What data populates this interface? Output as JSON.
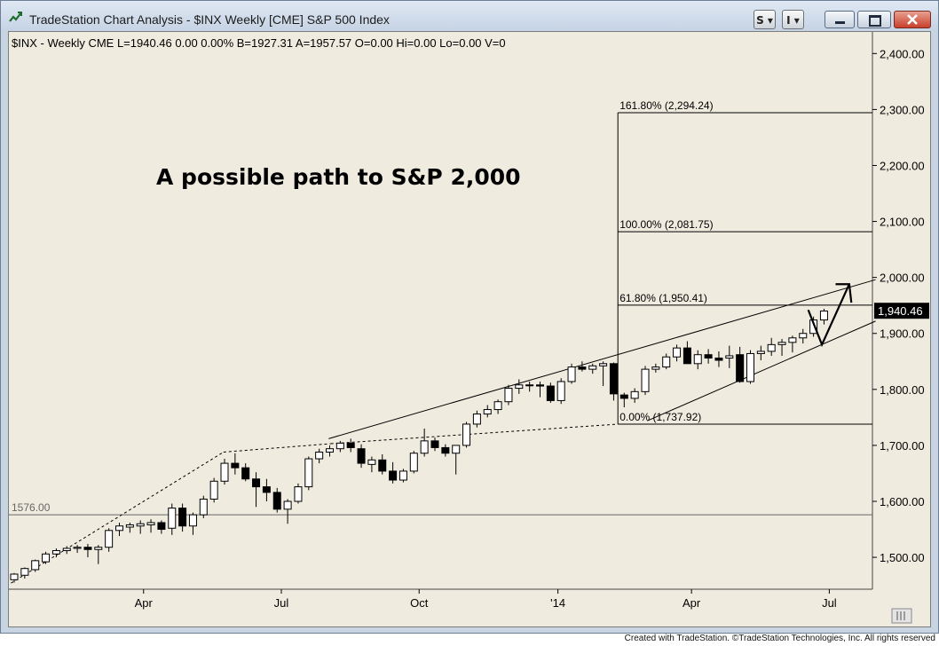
{
  "window": {
    "title": "TradeStation Chart Analysis - $INX Weekly [CME] S&P 500 Index",
    "buttons": {
      "symbol_menu": "S",
      "indicator_menu": "I"
    }
  },
  "status_bar": {
    "text": "$INX - Weekly  CME  L=1940.46  0.00  0.00%  B=1927.31  A=1957.57     O=0.00  Hi=0.00  Lo=0.00  V=0"
  },
  "annotation": {
    "headline": "A possible path to S&P 2,000"
  },
  "reference_line": {
    "value": 1576,
    "label": "1576.00"
  },
  "last_price": {
    "value": 1940.46,
    "label": "1,940.46",
    "bg_color": "#000000",
    "text_color": "#ffffff"
  },
  "footer": {
    "credit": "Created with TradeStation. ©TradeStation Technologies, Inc. All rights reserved"
  },
  "chart_data": {
    "type": "candlestick",
    "title": "",
    "ylim": [
      1450,
      2450
    ],
    "y_ticks": [
      {
        "value": 1500,
        "label": "1,500.00"
      },
      {
        "value": 1600,
        "label": "1,600.00"
      },
      {
        "value": 1700,
        "label": "1,700.00"
      },
      {
        "value": 1800,
        "label": "1,800.00"
      },
      {
        "value": 1900,
        "label": "1,900.00"
      },
      {
        "value": 2000,
        "label": "2,000.00"
      },
      {
        "value": 2100,
        "label": "2,100.00"
      },
      {
        "value": 2200,
        "label": "2,200.00"
      },
      {
        "value": 2300,
        "label": "2,300.00"
      },
      {
        "value": 2400,
        "label": "2,400.00"
      }
    ],
    "x_ticks": [
      {
        "bar": 12.3,
        "label": "Apr"
      },
      {
        "bar": 25.4,
        "label": "Jul"
      },
      {
        "bar": 38.5,
        "label": "Oct"
      },
      {
        "bar": 51.7,
        "label": "'14"
      },
      {
        "bar": 64.4,
        "label": "Apr"
      },
      {
        "bar": 77.5,
        "label": "Jul"
      }
    ],
    "candles": [
      [
        1460,
        1472,
        1455,
        1470
      ],
      [
        1468,
        1482,
        1462,
        1480
      ],
      [
        1478,
        1496,
        1474,
        1494
      ],
      [
        1492,
        1510,
        1488,
        1506
      ],
      [
        1506,
        1516,
        1500,
        1512
      ],
      [
        1512,
        1520,
        1506,
        1516
      ],
      [
        1516,
        1522,
        1508,
        1518
      ],
      [
        1518,
        1524,
        1500,
        1514
      ],
      [
        1514,
        1522,
        1488,
        1518
      ],
      [
        1518,
        1552,
        1510,
        1548
      ],
      [
        1548,
        1562,
        1538,
        1556
      ],
      [
        1554,
        1562,
        1544,
        1558
      ],
      [
        1556,
        1566,
        1542,
        1560
      ],
      [
        1558,
        1568,
        1544,
        1562
      ],
      [
        1562,
        1566,
        1542,
        1550
      ],
      [
        1552,
        1596,
        1540,
        1588
      ],
      [
        1588,
        1596,
        1546,
        1556
      ],
      [
        1556,
        1580,
        1540,
        1576
      ],
      [
        1576,
        1610,
        1570,
        1604
      ],
      [
        1604,
        1642,
        1598,
        1636
      ],
      [
        1636,
        1676,
        1630,
        1668
      ],
      [
        1668,
        1686,
        1648,
        1660
      ],
      [
        1660,
        1668,
        1636,
        1640
      ],
      [
        1640,
        1652,
        1590,
        1626
      ],
      [
        1626,
        1640,
        1600,
        1616
      ],
      [
        1616,
        1624,
        1580,
        1586
      ],
      [
        1586,
        1604,
        1560,
        1600
      ],
      [
        1600,
        1632,
        1596,
        1626
      ],
      [
        1626,
        1680,
        1620,
        1676
      ],
      [
        1676,
        1694,
        1668,
        1688
      ],
      [
        1688,
        1700,
        1680,
        1694
      ],
      [
        1694,
        1708,
        1688,
        1704
      ],
      [
        1704,
        1712,
        1688,
        1696
      ],
      [
        1694,
        1702,
        1660,
        1668
      ],
      [
        1666,
        1680,
        1652,
        1674
      ],
      [
        1674,
        1684,
        1648,
        1654
      ],
      [
        1654,
        1670,
        1632,
        1638
      ],
      [
        1638,
        1658,
        1634,
        1654
      ],
      [
        1654,
        1690,
        1650,
        1686
      ],
      [
        1686,
        1730,
        1680,
        1708
      ],
      [
        1708,
        1714,
        1690,
        1696
      ],
      [
        1696,
        1702,
        1680,
        1686
      ],
      [
        1686,
        1700,
        1648,
        1700
      ],
      [
        1700,
        1742,
        1696,
        1738
      ],
      [
        1738,
        1762,
        1732,
        1756
      ],
      [
        1756,
        1772,
        1750,
        1764
      ],
      [
        1764,
        1782,
        1756,
        1778
      ],
      [
        1778,
        1808,
        1772,
        1802
      ],
      [
        1802,
        1818,
        1792,
        1808
      ],
      [
        1808,
        1814,
        1796,
        1808
      ],
      [
        1808,
        1814,
        1786,
        1806
      ],
      [
        1806,
        1812,
        1776,
        1780
      ],
      [
        1780,
        1820,
        1774,
        1814
      ],
      [
        1814,
        1846,
        1810,
        1840
      ],
      [
        1840,
        1850,
        1832,
        1836
      ],
      [
        1836,
        1846,
        1828,
        1842
      ],
      [
        1842,
        1850,
        1806,
        1846
      ],
      [
        1846,
        1848,
        1780,
        1792
      ],
      [
        1790,
        1794,
        1768,
        1784
      ],
      [
        1784,
        1802,
        1776,
        1796
      ],
      [
        1796,
        1842,
        1790,
        1836
      ],
      [
        1836,
        1846,
        1830,
        1840
      ],
      [
        1840,
        1864,
        1836,
        1858
      ],
      [
        1858,
        1880,
        1850,
        1874
      ],
      [
        1874,
        1886,
        1852,
        1846
      ],
      [
        1846,
        1870,
        1836,
        1862
      ],
      [
        1862,
        1872,
        1846,
        1856
      ],
      [
        1856,
        1868,
        1840,
        1852
      ],
      [
        1856,
        1878,
        1838,
        1860
      ],
      [
        1862,
        1876,
        1812,
        1814
      ],
      [
        1814,
        1870,
        1810,
        1864
      ],
      [
        1864,
        1878,
        1852,
        1868
      ],
      [
        1868,
        1892,
        1860,
        1880
      ],
      [
        1880,
        1890,
        1860,
        1884
      ],
      [
        1884,
        1896,
        1866,
        1892
      ],
      [
        1892,
        1908,
        1882,
        1900
      ],
      [
        1900,
        1930,
        1894,
        1924
      ],
      [
        1924,
        1944,
        1916,
        1940
      ]
    ],
    "fibonacci": {
      "levels": [
        {
          "value": 2294.24,
          "label": "161.80% (2,294.24)"
        },
        {
          "value": 2081.75,
          "label": "100.00% (2,081.75)"
        },
        {
          "value": 1950.41,
          "label": "61.80% (1,950.41)"
        },
        {
          "value": 1737.92,
          "label": "0.00% (1,737.92)"
        }
      ]
    },
    "colors": {
      "background": "#f0ebdf",
      "up": "#ffffff",
      "down": "#000000",
      "line": "#000000"
    }
  }
}
